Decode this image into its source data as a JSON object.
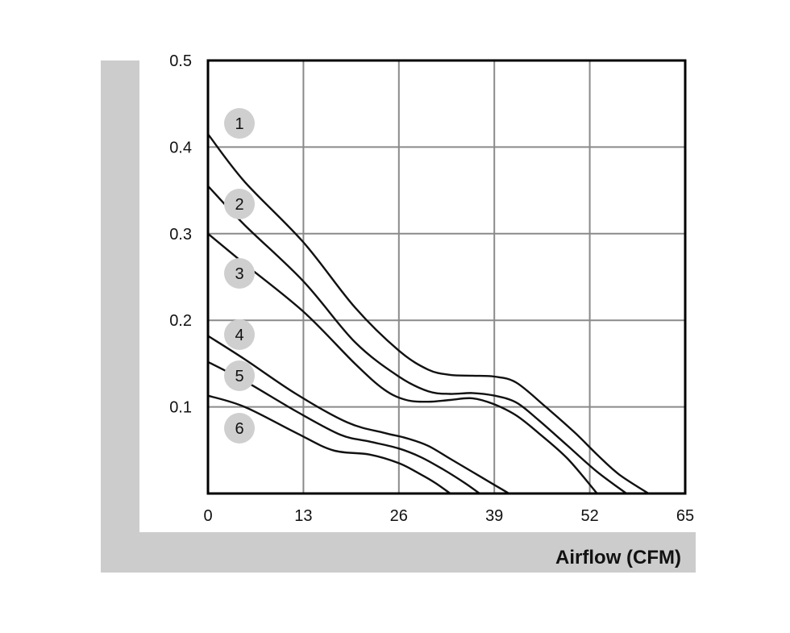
{
  "chart_data": {
    "type": "line",
    "title": "",
    "xlabel": "Airflow (CFM)",
    "ylabel": "",
    "xlim": [
      0,
      65
    ],
    "ylim": [
      0,
      0.5
    ],
    "x_ticks": [
      "0",
      "13",
      "26",
      "39",
      "52",
      "65"
    ],
    "y_ticks": [
      "0.1",
      "0.2",
      "0.3",
      "0.4",
      "0.5"
    ],
    "grid": true,
    "series": [
      {
        "name": "1",
        "points": [
          [
            0,
            0.415
          ],
          [
            5,
            0.36
          ],
          [
            13,
            0.29
          ],
          [
            20,
            0.215
          ],
          [
            26,
            0.165
          ],
          [
            30,
            0.143
          ],
          [
            33,
            0.137
          ],
          [
            36,
            0.136
          ],
          [
            39,
            0.135
          ],
          [
            42,
            0.128
          ],
          [
            46,
            0.1
          ],
          [
            50,
            0.07
          ],
          [
            53,
            0.045
          ],
          [
            56,
            0.022
          ],
          [
            60,
            0.0
          ]
        ]
      },
      {
        "name": "2",
        "points": [
          [
            0,
            0.355
          ],
          [
            5,
            0.31
          ],
          [
            13,
            0.245
          ],
          [
            20,
            0.175
          ],
          [
            26,
            0.135
          ],
          [
            30,
            0.118
          ],
          [
            33,
            0.115
          ],
          [
            36,
            0.116
          ],
          [
            39,
            0.113
          ],
          [
            42,
            0.105
          ],
          [
            45,
            0.085
          ],
          [
            49,
            0.055
          ],
          [
            53,
            0.025
          ],
          [
            57,
            0.0
          ]
        ]
      },
      {
        "name": "3",
        "points": [
          [
            0,
            0.3
          ],
          [
            5,
            0.265
          ],
          [
            13,
            0.21
          ],
          [
            20,
            0.15
          ],
          [
            24,
            0.12
          ],
          [
            27,
            0.108
          ],
          [
            30,
            0.106
          ],
          [
            33,
            0.108
          ],
          [
            36,
            0.11
          ],
          [
            39,
            0.103
          ],
          [
            42,
            0.09
          ],
          [
            45,
            0.07
          ],
          [
            49,
            0.04
          ],
          [
            53,
            0.0
          ]
        ]
      },
      {
        "name": "4",
        "points": [
          [
            0,
            0.182
          ],
          [
            5,
            0.155
          ],
          [
            12,
            0.115
          ],
          [
            19,
            0.082
          ],
          [
            24,
            0.07
          ],
          [
            27,
            0.064
          ],
          [
            30,
            0.055
          ],
          [
            33,
            0.04
          ],
          [
            36,
            0.025
          ],
          [
            39,
            0.01
          ],
          [
            41,
            0.0
          ]
        ]
      },
      {
        "name": "5",
        "points": [
          [
            0,
            0.152
          ],
          [
            5,
            0.13
          ],
          [
            12,
            0.095
          ],
          [
            18,
            0.068
          ],
          [
            22,
            0.06
          ],
          [
            26,
            0.052
          ],
          [
            29,
            0.042
          ],
          [
            32,
            0.028
          ],
          [
            35,
            0.012
          ],
          [
            37,
            0.0
          ]
        ]
      },
      {
        "name": "6",
        "points": [
          [
            0,
            0.113
          ],
          [
            5,
            0.1
          ],
          [
            12,
            0.07
          ],
          [
            17,
            0.05
          ],
          [
            22,
            0.045
          ],
          [
            26,
            0.035
          ],
          [
            29,
            0.022
          ],
          [
            31,
            0.012
          ],
          [
            33,
            0.0
          ]
        ]
      }
    ],
    "badges": [
      "1",
      "2",
      "3",
      "4",
      "5",
      "6"
    ],
    "colors": {
      "line": "#111111",
      "grid": "#8a8a8a",
      "badge": "#cfcfcf",
      "frame_band": "#cccccc"
    }
  }
}
